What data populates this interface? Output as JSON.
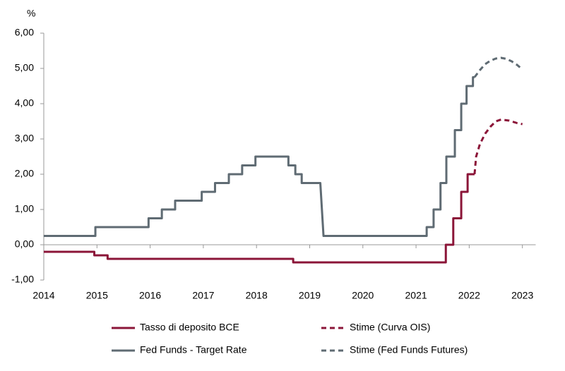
{
  "chart_data": {
    "type": "line",
    "y_label": "%",
    "xlim": [
      2014,
      2023.25
    ],
    "xticks": [
      2014,
      2015,
      2016,
      2017,
      2018,
      2019,
      2020,
      2021,
      2022,
      2023
    ],
    "ylim": [
      -1,
      6
    ],
    "yticks": [
      {
        "value": -1,
        "label": "-1,00"
      },
      {
        "value": 0,
        "label": "0,00"
      },
      {
        "value": 1,
        "label": "1,00"
      },
      {
        "value": 2,
        "label": "2,00"
      },
      {
        "value": 3,
        "label": "3,00"
      },
      {
        "value": 4,
        "label": "4,00"
      },
      {
        "value": 5,
        "label": "5,00"
      },
      {
        "value": 6,
        "label": "6,00"
      }
    ],
    "series": [
      {
        "name": "Tasso di deposito BCE",
        "color": "#8b1538",
        "dashed": false,
        "x": [
          2014,
          2014.95,
          2014.95,
          2015.2,
          2015.2,
          2018.69,
          2018.69,
          2021.56,
          2021.56,
          2021.7,
          2021.7,
          2021.85,
          2021.85,
          2021.97,
          2021.97,
          2022.1
        ],
        "values": [
          -0.2,
          -0.2,
          -0.3,
          -0.3,
          -0.4,
          -0.4,
          -0.5,
          -0.5,
          0,
          0,
          0.75,
          0.75,
          1.5,
          1.5,
          2,
          2
        ]
      },
      {
        "name": "Stime (Curva OIS)",
        "color": "#8b1538",
        "dashed": true,
        "x": [
          2022.1,
          2022.13,
          2022.2,
          2022.3,
          2022.4,
          2022.5,
          2022.6,
          2022.75,
          2022.9,
          2023
        ],
        "values": [
          2,
          2.5,
          2.85,
          3.15,
          3.35,
          3.5,
          3.55,
          3.52,
          3.45,
          3.42
        ]
      },
      {
        "name": "Fed Funds - Target Rate",
        "color": "#5f6b73",
        "dashed": false,
        "x": [
          2014,
          2014.97,
          2014.97,
          2015.97,
          2015.97,
          2016.22,
          2016.22,
          2016.47,
          2016.47,
          2016.97,
          2016.97,
          2017.22,
          2017.22,
          2017.48,
          2017.48,
          2017.73,
          2017.73,
          2017.98,
          2017.98,
          2018.6,
          2018.6,
          2018.73,
          2018.73,
          2018.85,
          2018.85,
          2019.2,
          2019.22,
          2019.26,
          2021.2,
          2021.2,
          2021.33,
          2021.33,
          2021.46,
          2021.46,
          2021.57,
          2021.57,
          2021.73,
          2021.73,
          2021.85,
          2021.85,
          2021.95,
          2021.95,
          2022.07,
          2022.07,
          2022.1
        ],
        "values": [
          0.25,
          0.25,
          0.5,
          0.5,
          0.75,
          0.75,
          1,
          1,
          1.25,
          1.25,
          1.5,
          1.5,
          1.75,
          1.75,
          2,
          2,
          2.25,
          2.25,
          2.5,
          2.5,
          2.25,
          2.25,
          2,
          2,
          1.75,
          1.75,
          1.25,
          0.25,
          0.25,
          0.5,
          0.5,
          1,
          1,
          1.75,
          1.75,
          2.5,
          2.5,
          3.25,
          3.25,
          4,
          4,
          4.5,
          4.5,
          4.75,
          4.75
        ]
      },
      {
        "name": "Stime (Fed Funds Futures)",
        "color": "#5f6b73",
        "dashed": true,
        "x": [
          2022.1,
          2022.2,
          2022.3,
          2022.4,
          2022.5,
          2022.6,
          2022.7,
          2022.8,
          2022.9,
          2023
        ],
        "values": [
          4.75,
          4.95,
          5.12,
          5.22,
          5.28,
          5.3,
          5.27,
          5.2,
          5.1,
          4.97
        ]
      }
    ]
  }
}
